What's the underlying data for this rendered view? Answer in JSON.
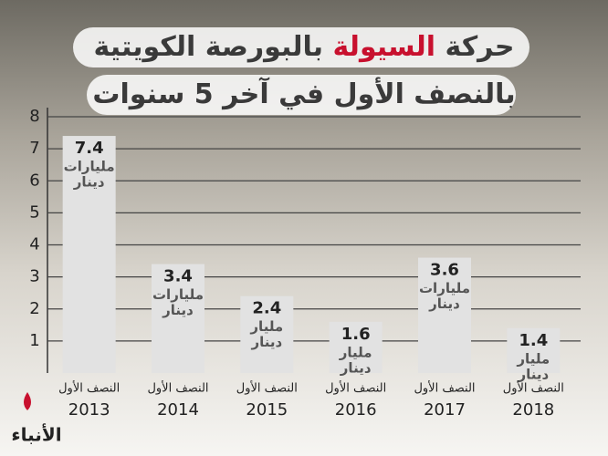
{
  "chart_data": {
    "type": "bar",
    "title": {
      "lines": [
        [
          "حركة",
          "السيولة",
          "بالبورصة الكويتية"
        ],
        [
          "بالنصف الأول في آخر 5 سنوات"
        ]
      ],
      "highlight_color": "#c8102e"
    },
    "category_prefix": "النصف الأول",
    "categories": [
      "2013",
      "2014",
      "2015",
      "2016",
      "2017",
      "2018"
    ],
    "values": [
      7.4,
      3.4,
      2.4,
      1.6,
      3.6,
      1.4
    ],
    "unit_labels": [
      [
        "مليارات",
        "دينار"
      ],
      [
        "مليارات",
        "دينار"
      ],
      [
        "مليار",
        "دينار"
      ],
      [
        "مليار",
        "دينار"
      ],
      [
        "مليارات",
        "دينار"
      ],
      [
        "مليار",
        "دينار"
      ]
    ],
    "color": "#e2e2e2",
    "ylim": [
      0,
      8
    ],
    "yticks": [
      1,
      2,
      3,
      4,
      5,
      6,
      7,
      8
    ],
    "grid": true,
    "logo": "الأنباء"
  }
}
